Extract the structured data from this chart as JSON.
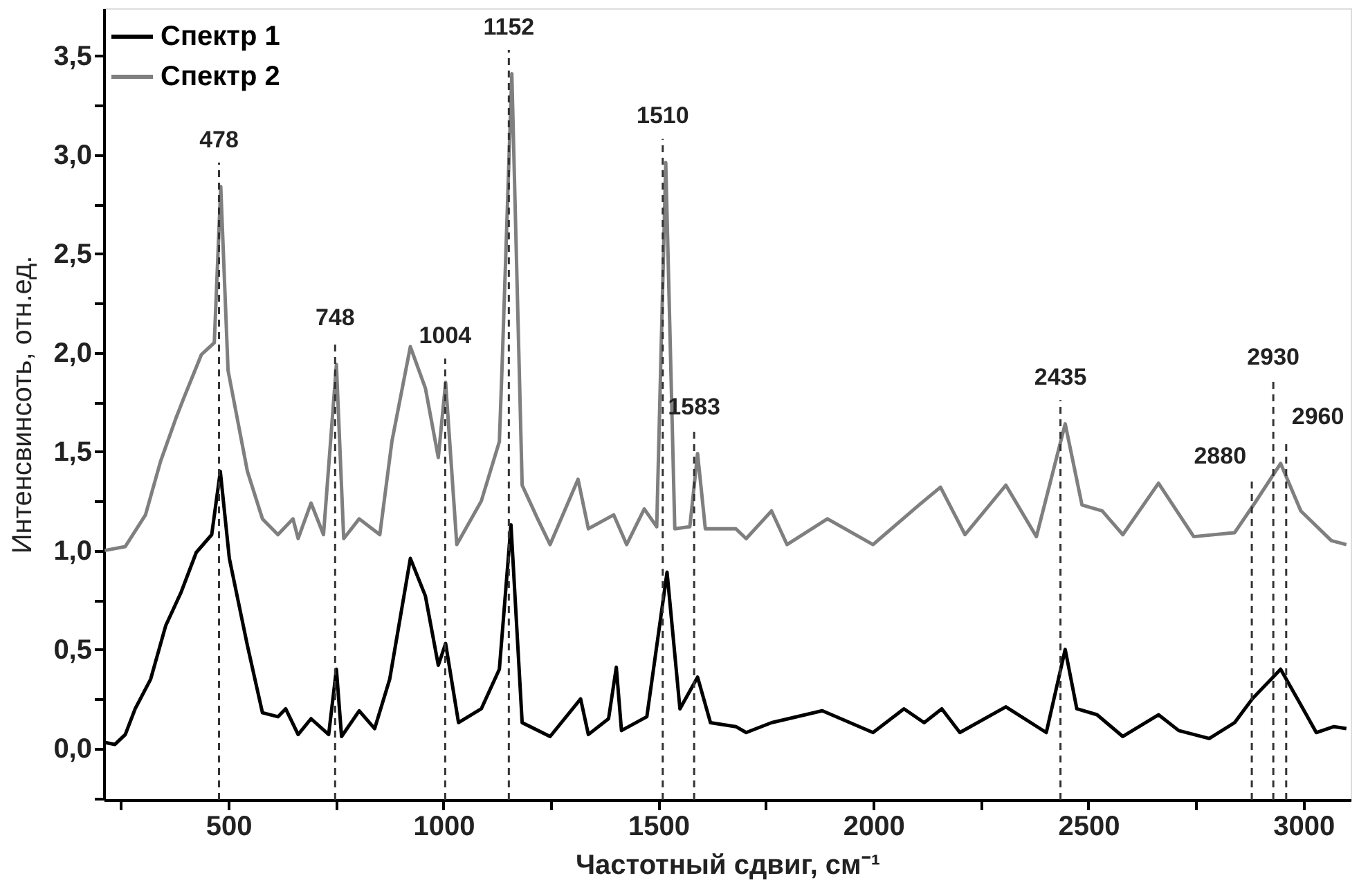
{
  "chart_data": {
    "type": "line",
    "xlabel": "Частотный сдвиг, см⁻¹",
    "ylabel": "Интенсвинсоть, отн.ед.",
    "xlim": [
      210,
      3110
    ],
    "ylim": [
      -0.26,
      3.74
    ],
    "xticks": [
      {
        "value": 250,
        "label": null
      },
      500,
      {
        "value": 750,
        "label": null
      },
      1000,
      {
        "value": 1250,
        "label": null
      },
      1500,
      {
        "value": 1750,
        "label": null
      },
      2000,
      {
        "value": 2250,
        "label": null
      },
      2500,
      {
        "value": 2750,
        "label": null
      },
      3000
    ],
    "yticks": [
      {
        "value": -0.25,
        "label": null
      },
      {
        "value": 0,
        "label": "0,0"
      },
      {
        "value": 0.25,
        "label": null
      },
      {
        "value": 0.5,
        "label": "0,5"
      },
      {
        "value": 0.75,
        "label": null
      },
      {
        "value": 1,
        "label": "1,0"
      },
      {
        "value": 1.25,
        "label": null
      },
      {
        "value": 1.5,
        "label": "1,5"
      },
      {
        "value": 1.75,
        "label": null
      },
      {
        "value": 2,
        "label": "2,0"
      },
      {
        "value": 2.25,
        "label": null
      },
      {
        "value": 2.5,
        "label": "2,5"
      },
      {
        "value": 2.75,
        "label": null
      },
      {
        "value": 3,
        "label": "3,0"
      },
      {
        "value": 3.25,
        "label": null
      },
      {
        "value": 3.5,
        "label": "3,5"
      }
    ],
    "grid": false,
    "legend": "top left",
    "marker": "none",
    "line_style": "solid",
    "series": [
      {
        "name": "Спектр 1",
        "color": "#000000",
        "x": [
          212,
          236,
          260,
          283,
          319,
          354,
          390,
          425,
          461,
          481,
          502,
          544,
          579,
          615,
          633,
          662,
          692,
          733,
          751,
          763,
          804,
          840,
          875,
          923,
          958,
          988,
          1005,
          1035,
          1088,
          1130,
          1157,
          1183,
          1248,
          1319,
          1337,
          1384,
          1402,
          1414,
          1473,
          1520,
          1550,
          1591,
          1621,
          1680,
          1704,
          1763,
          1881,
          1999,
          2071,
          2118,
          2159,
          2201,
          2308,
          2402,
          2446,
          2473,
          2520,
          2580,
          2663,
          2710,
          2781,
          2840,
          2881,
          2947,
          2994,
          3030,
          3071,
          3100
        ],
        "values": [
          0.03,
          0.02,
          0.07,
          0.2,
          0.35,
          0.62,
          0.79,
          0.99,
          1.08,
          1.4,
          0.96,
          0.52,
          0.18,
          0.16,
          0.2,
          0.07,
          0.15,
          0.07,
          0.4,
          0.06,
          0.19,
          0.1,
          0.35,
          0.96,
          0.77,
          0.42,
          0.53,
          0.13,
          0.2,
          0.4,
          1.13,
          0.13,
          0.06,
          0.25,
          0.07,
          0.15,
          0.41,
          0.09,
          0.16,
          0.89,
          0.2,
          0.36,
          0.13,
          0.11,
          0.08,
          0.13,
          0.19,
          0.08,
          0.2,
          0.13,
          0.2,
          0.08,
          0.21,
          0.08,
          0.5,
          0.2,
          0.17,
          0.06,
          0.17,
          0.09,
          0.05,
          0.13,
          0.25,
          0.4,
          0.22,
          0.08,
          0.11,
          0.1
        ]
      },
      {
        "name": "Спектр 2",
        "color": "#7f7f7f",
        "x": [
          212,
          260,
          307,
          342,
          378,
          396,
          437,
          467,
          482,
          499,
          544,
          579,
          615,
          650,
          662,
          692,
          721,
          751,
          768,
          804,
          852,
          880,
          923,
          958,
          988,
          1005,
          1031,
          1088,
          1130,
          1136,
          1159,
          1183,
          1219,
          1248,
          1313,
          1337,
          1396,
          1426,
          1467,
          1496,
          1517,
          1538,
          1573,
          1591,
          1609,
          1680,
          1704,
          1763,
          1799,
          1893,
          1999,
          2106,
          2156,
          2213,
          2308,
          2379,
          2446,
          2485,
          2532,
          2580,
          2663,
          2745,
          2840,
          2887,
          2947,
          2994,
          3065,
          3100
        ],
        "values": [
          1.0,
          1.02,
          1.18,
          1.45,
          1.67,
          1.77,
          1.99,
          2.05,
          2.84,
          1.91,
          1.4,
          1.16,
          1.08,
          1.16,
          1.06,
          1.24,
          1.08,
          1.94,
          1.06,
          1.16,
          1.08,
          1.55,
          2.03,
          1.82,
          1.47,
          1.85,
          1.03,
          1.25,
          1.55,
          1.91,
          3.41,
          1.33,
          1.16,
          1.03,
          1.36,
          1.11,
          1.18,
          1.03,
          1.21,
          1.12,
          2.96,
          1.11,
          1.12,
          1.49,
          1.11,
          1.11,
          1.06,
          1.2,
          1.03,
          1.16,
          1.03,
          1.23,
          1.32,
          1.08,
          1.33,
          1.07,
          1.64,
          1.23,
          1.2,
          1.08,
          1.34,
          1.07,
          1.09,
          1.24,
          1.44,
          1.2,
          1.05,
          1.03
        ]
      }
    ],
    "ref_lines": [
      {
        "axis": "x",
        "value": 478,
        "label": "478",
        "line_style": "dashed",
        "color": "#333333"
      },
      {
        "axis": "x",
        "value": 748,
        "label": "748",
        "line_style": "dashed",
        "color": "#333333"
      },
      {
        "axis": "x",
        "value": 1004,
        "label": "1004",
        "line_style": "dashed",
        "color": "#333333"
      },
      {
        "axis": "x",
        "value": 1152,
        "label": "1152",
        "line_style": "dashed",
        "color": "#333333"
      },
      {
        "axis": "x",
        "value": 1510,
        "label": "1510",
        "line_style": "dashed",
        "color": "#333333"
      },
      {
        "axis": "x",
        "value": 1583,
        "label": "1583",
        "line_style": "dashed",
        "color": "#333333"
      },
      {
        "axis": "x",
        "value": 2435,
        "label": "2435",
        "line_style": "dashed",
        "color": "#333333"
      },
      {
        "axis": "x",
        "value": 2880,
        "label": "2880",
        "line_style": "dashed",
        "color": "#333333"
      },
      {
        "axis": "x",
        "value": 2930,
        "label": "2930",
        "line_style": "dashed",
        "color": "#333333"
      },
      {
        "axis": "x",
        "value": 2960,
        "label": "2960",
        "line_style": "dashed",
        "color": "#333333"
      }
    ]
  }
}
